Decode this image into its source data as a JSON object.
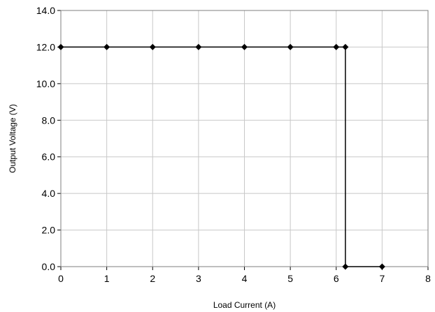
{
  "chart_data": {
    "type": "line",
    "title": "",
    "xlabel": "Load Current (A)",
    "ylabel": "Output Voltage (V)",
    "xlim": [
      0,
      8
    ],
    "ylim": [
      0,
      14
    ],
    "x_ticks": [
      "0",
      "1",
      "2",
      "3",
      "4",
      "5",
      "6",
      "7",
      "8"
    ],
    "y_ticks": [
      "0.0",
      "2.0",
      "4.0",
      "6.0",
      "8.0",
      "10.0",
      "12.0",
      "14.0"
    ],
    "grid": true,
    "legend": "none",
    "marker": "diamond",
    "series": [
      {
        "x": [
          0,
          1,
          2,
          3,
          4,
          5,
          6,
          6.2,
          6.2,
          7
        ],
        "y": [
          12,
          12,
          12,
          12,
          12,
          12,
          12,
          12,
          0,
          0
        ],
        "color": "#000000"
      }
    ]
  }
}
